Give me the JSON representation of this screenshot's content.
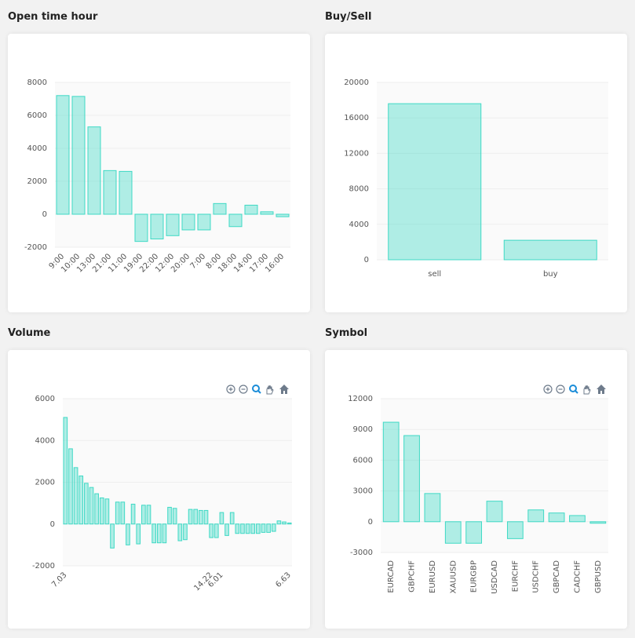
{
  "chart_data": [
    {
      "type": "bar",
      "title": "Open time hour",
      "categories": [
        "9:00",
        "10:00",
        "13:00",
        "21:00",
        "11:00",
        "19:00",
        "22:00",
        "12:00",
        "20:00",
        "7:00",
        "8:00",
        "18:00",
        "14:00",
        "17:00",
        "16:00"
      ],
      "values": [
        7200,
        7150,
        5300,
        2650,
        2600,
        -1650,
        -1500,
        -1300,
        -950,
        -950,
        650,
        -750,
        550,
        150,
        -150
      ],
      "color": "#3fd9c5",
      "ylim": [
        -2000,
        8000
      ],
      "yticks": [
        -2000,
        0,
        2000,
        4000,
        6000,
        8000
      ],
      "grid": true
    },
    {
      "type": "bar",
      "title": "Buy/Sell",
      "categories": [
        "sell",
        "buy"
      ],
      "values": [
        17600,
        2200
      ],
      "color": "#3fd9c5",
      "ylim": [
        0,
        20000
      ],
      "yticks": [
        0,
        4000,
        8000,
        12000,
        16000,
        20000
      ],
      "grid": true
    },
    {
      "type": "bar",
      "title": "Volume",
      "categories": [
        "7.03",
        null,
        null,
        null,
        null,
        null,
        null,
        null,
        null,
        null,
        null,
        null,
        null,
        null,
        null,
        null,
        null,
        null,
        null,
        null,
        null,
        null,
        null,
        null,
        null,
        null,
        null,
        null,
        "14.22",
        null,
        "6.01",
        null,
        null,
        null,
        null,
        null,
        null,
        null,
        null,
        null,
        null,
        null,
        null,
        "6.63"
      ],
      "values": [
        5100,
        3600,
        2700,
        2300,
        1950,
        1750,
        1450,
        1250,
        1200,
        -1150,
        1050,
        1050,
        -1000,
        950,
        -950,
        900,
        900,
        -900,
        -900,
        -900,
        800,
        750,
        -800,
        -750,
        700,
        700,
        650,
        650,
        -650,
        -650,
        550,
        -550,
        550,
        -450,
        -450,
        -450,
        -450,
        -450,
        -400,
        -400,
        -350,
        150,
        100,
        50
      ],
      "color": "#3fd9c5",
      "ylim": [
        -2000,
        6000
      ],
      "yticks": [
        -2000,
        0,
        2000,
        4000,
        6000
      ],
      "grid": true
    },
    {
      "type": "bar",
      "title": "Symbol",
      "categories": [
        "EURCAD",
        "GBPCHF",
        "EURUSD",
        "XAUUSD",
        "EURGBP",
        "USDCAD",
        "EURCHF",
        "USDCHF",
        "GBPCAD",
        "CADCHF",
        "GBPUSD"
      ],
      "values": [
        9700,
        8400,
        2750,
        -2100,
        -2100,
        2000,
        -1650,
        1150,
        850,
        600,
        -150
      ],
      "color": "#3fd9c5",
      "ylim": [
        -3000,
        12000
      ],
      "yticks": [
        -3000,
        0,
        3000,
        6000,
        9000,
        12000
      ],
      "grid": true
    }
  ]
}
